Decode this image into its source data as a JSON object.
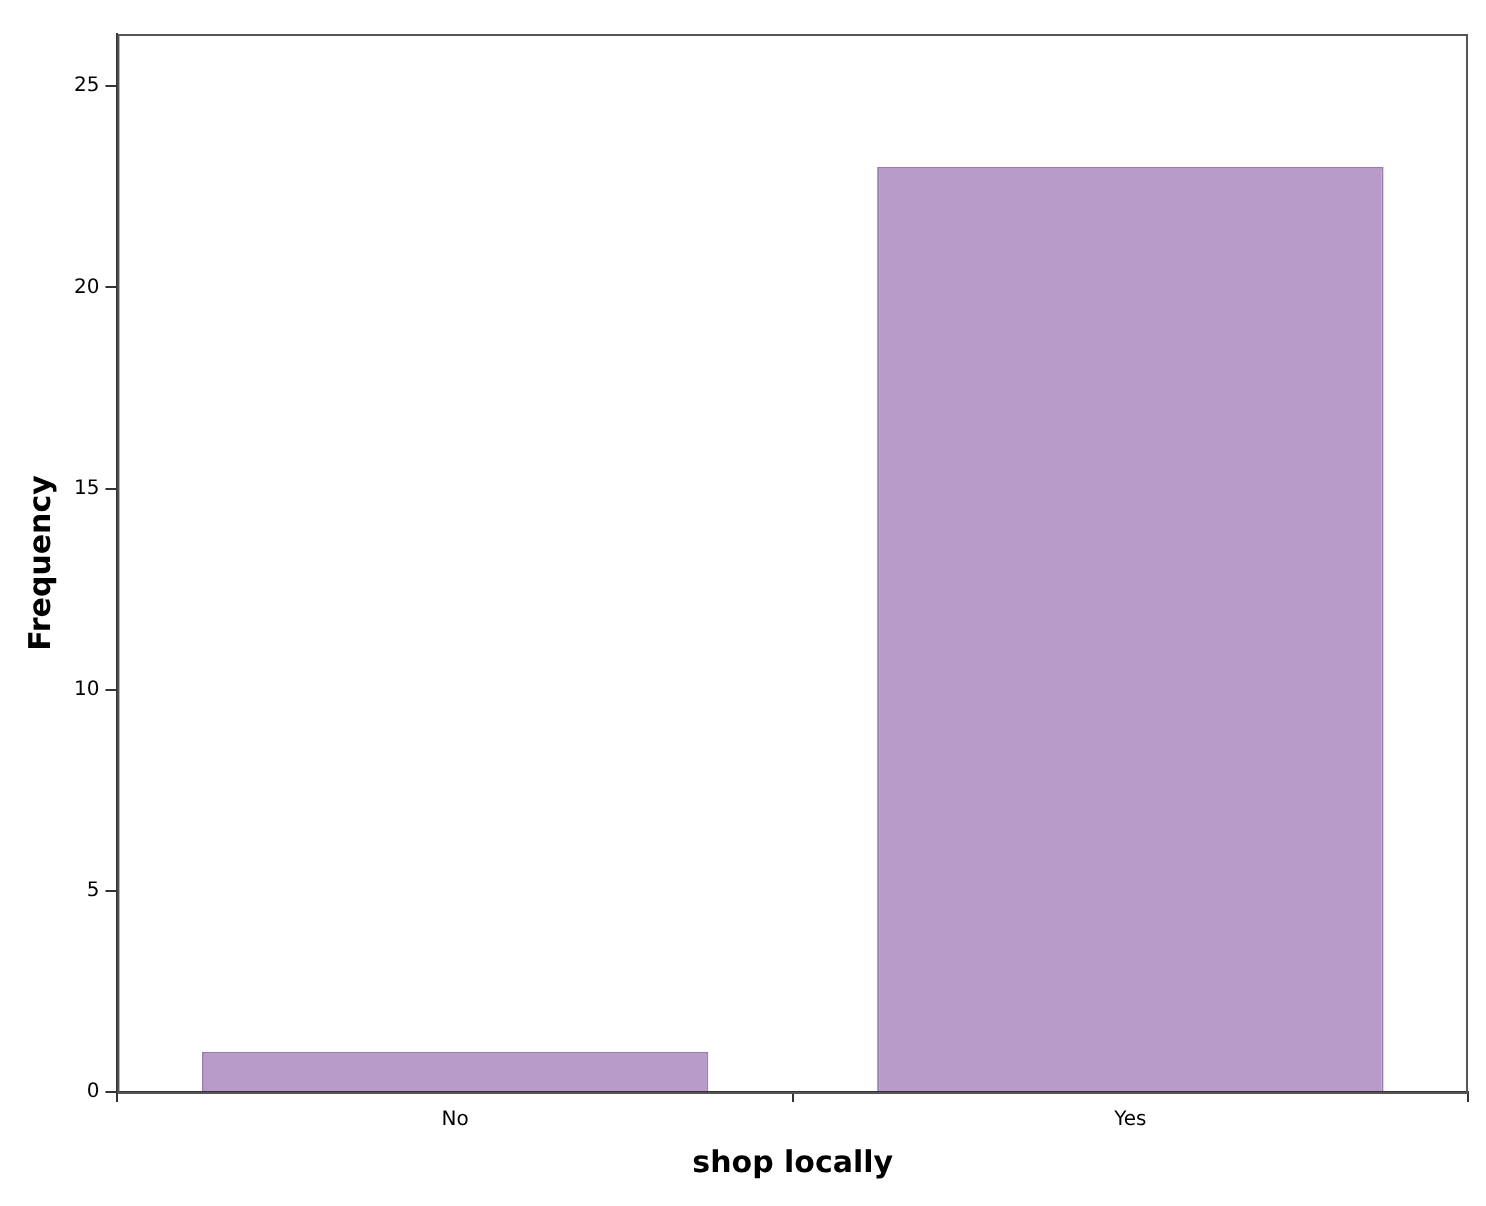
{
  "chart_data": {
    "type": "bar",
    "xlabel": "shop locally",
    "ylabel": "Frequency",
    "categories": [
      "No",
      "Yes"
    ],
    "values": [
      1,
      23
    ],
    "color": "#b89bc9",
    "ylim": [
      0,
      26.3
    ],
    "yticks": [
      0,
      5,
      10,
      15,
      20,
      25
    ],
    "grid": false,
    "legend": false
  }
}
